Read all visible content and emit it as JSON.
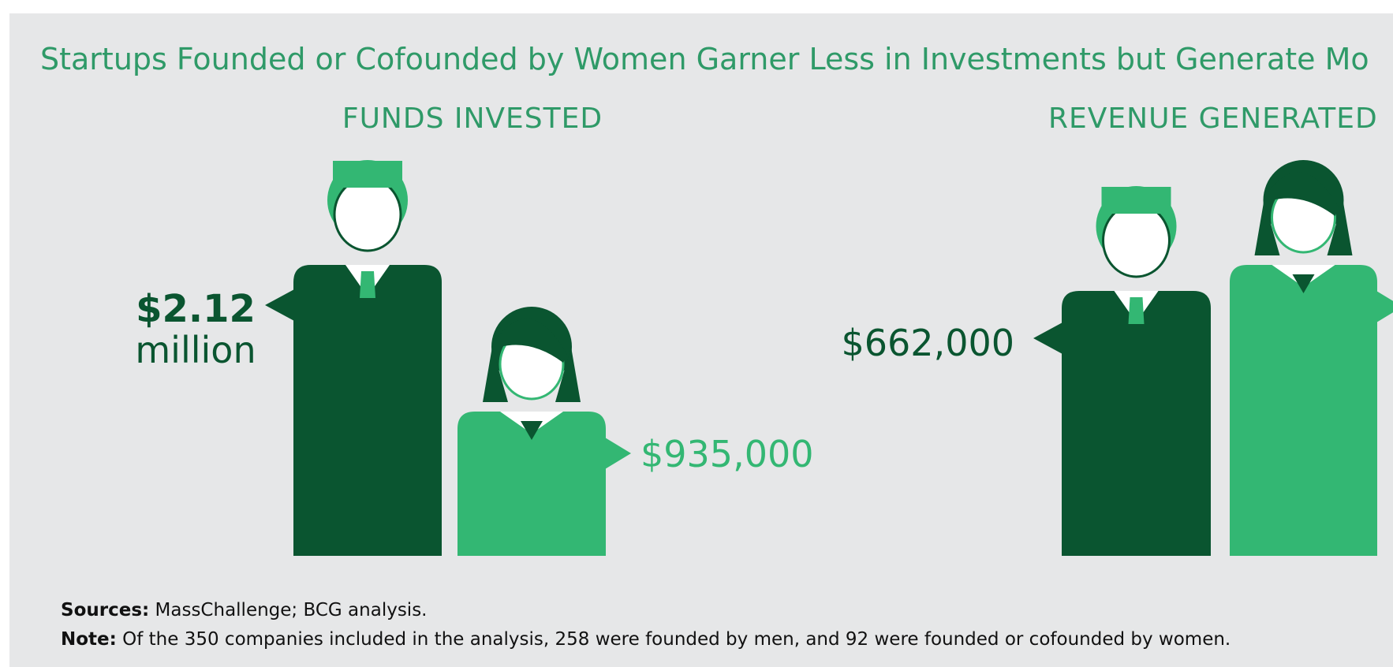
{
  "header": {
    "title": "Startups Founded or Cofounded by Women Garner Less in Investments but Generate Mo"
  },
  "panels": [
    {
      "title": "FUNDS INVESTED",
      "men_label": [
        "$2.12",
        "million"
      ],
      "women_label": "$935,000"
    },
    {
      "title": "REVENUE GENERATED",
      "men_label": "$662,000"
    }
  ],
  "footer": {
    "sources_label": "Sources:",
    "sources": "MassChallenge; BCG analysis.",
    "note_label": "Note:",
    "note": "Of the 350 companies included in the analysis, 258 were founded by men, and 92 were founded or cofounded by women."
  }
}
